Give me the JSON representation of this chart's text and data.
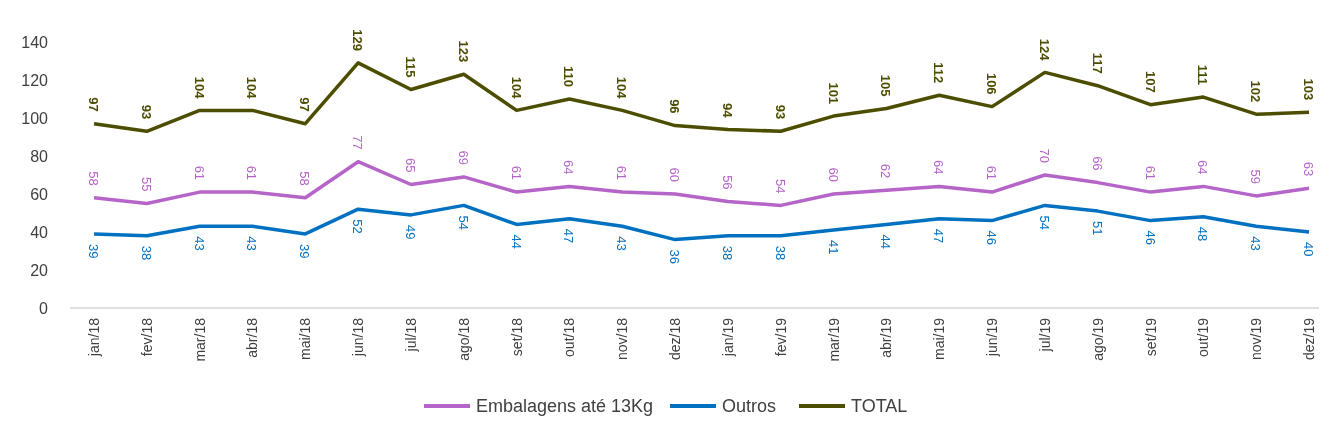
{
  "chart_data": {
    "type": "line",
    "categories": [
      "jan/18",
      "fev/18",
      "mar/18",
      "abr/18",
      "mai/18",
      "jun/18",
      "jul/18",
      "ago/18",
      "set/18",
      "out/18",
      "nov/18",
      "dez/18",
      "jan/19",
      "fev/19",
      "mar/19",
      "abr/19",
      "mai/19",
      "jun/19",
      "jul/19",
      "ago/19",
      "set/19",
      "out/19",
      "nov/19",
      "dez/19"
    ],
    "series": [
      {
        "name": "Embalagens até 13Kg",
        "color": "#b565c8",
        "values": [
          58,
          55,
          61,
          61,
          58,
          77,
          65,
          69,
          61,
          64,
          61,
          60,
          56,
          54,
          60,
          62,
          64,
          61,
          70,
          66,
          61,
          64,
          59,
          63
        ]
      },
      {
        "name": "Outros",
        "color": "#0070c0",
        "values": [
          39,
          38,
          43,
          43,
          39,
          52,
          49,
          54,
          44,
          47,
          43,
          36,
          38,
          38,
          41,
          44,
          47,
          46,
          54,
          51,
          46,
          48,
          43,
          40
        ]
      },
      {
        "name": "TOTAL",
        "color": "#4d4d00",
        "values": [
          97,
          93,
          104,
          104,
          97,
          129,
          115,
          123,
          104,
          110,
          104,
          96,
          94,
          93,
          101,
          105,
          112,
          106,
          124,
          117,
          107,
          111,
          102,
          103
        ]
      }
    ],
    "ylim": [
      0,
      140
    ],
    "yticks": [
      0,
      20,
      40,
      60,
      80,
      100,
      120,
      140
    ],
    "grid": false,
    "legend": "bottom",
    "data_labels": true,
    "marker": "none",
    "line_style": "solid"
  }
}
